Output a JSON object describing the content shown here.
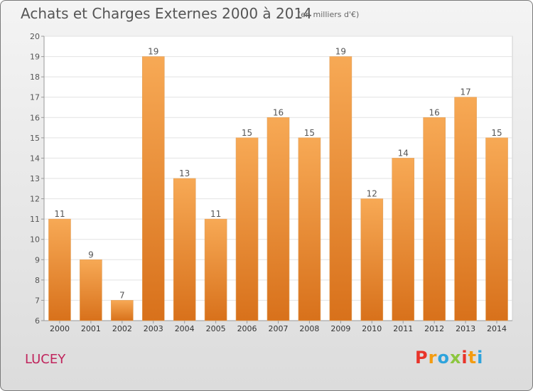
{
  "header": {
    "title": "Achats et Charges Externes 2000 à 2014",
    "subtitle": "(en milliers d'€)"
  },
  "footer": {
    "commune": "LUCEY",
    "logo_text": "Proxiti",
    "logo_colors": [
      "#e8342a",
      "#f39c12",
      "#2ea3dc",
      "#8cc63f",
      "#e8342a",
      "#f39c12",
      "#2ea3dc"
    ]
  },
  "chart_data": {
    "type": "bar",
    "categories": [
      "2000",
      "2001",
      "2002",
      "2003",
      "2004",
      "2005",
      "2006",
      "2007",
      "2008",
      "2009",
      "2010",
      "2011",
      "2012",
      "2013",
      "2014"
    ],
    "values": [
      11,
      9,
      7,
      19,
      13,
      11,
      15,
      16,
      15,
      19,
      12,
      14,
      16,
      17,
      15
    ],
    "ylim": [
      6,
      20
    ],
    "yticks": [
      6,
      7,
      8,
      9,
      10,
      11,
      12,
      13,
      14,
      15,
      16,
      17,
      18,
      19,
      20
    ],
    "grid": true,
    "bar_color_top": "#f7a955",
    "bar_color_bottom": "#d8711b"
  }
}
